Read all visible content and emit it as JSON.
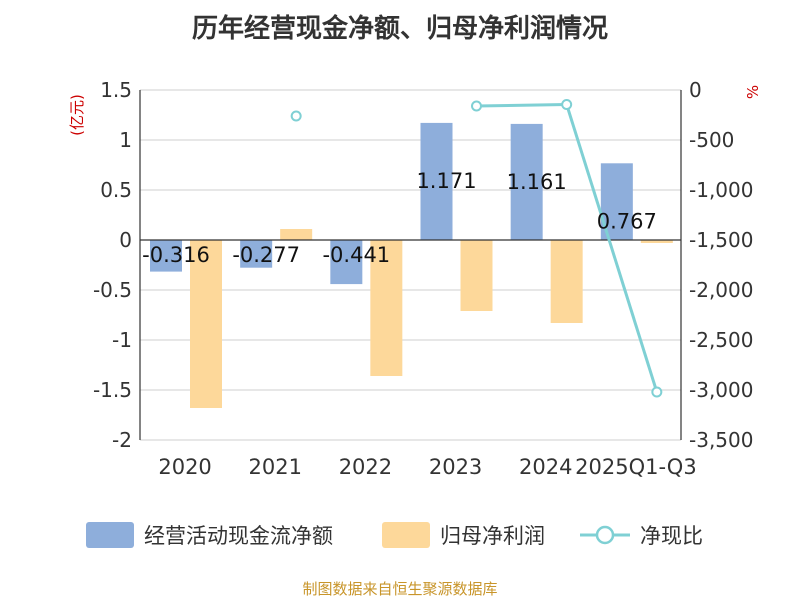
{
  "chart_data": {
    "type": "bar",
    "title": "历年经营现金净额、归母净利润情况",
    "categories": [
      "2020",
      "2021",
      "2022",
      "2023",
      "2024",
      "2025Q1-Q3"
    ],
    "y_left": {
      "unit_label": "(亿元)",
      "ylim": [
        -2,
        1.5
      ],
      "ticks": [
        1.5,
        1,
        0.5,
        0,
        -0.5,
        -1,
        -1.5,
        -2
      ],
      "tick_labels": [
        "1.5",
        "1",
        "0.5",
        "0",
        "-0.5",
        "-1",
        "-1.5",
        "-2"
      ]
    },
    "y_right": {
      "unit_label": "%",
      "ylim": [
        -3500,
        0
      ],
      "ticks": [
        0,
        -500,
        -1000,
        -1500,
        -2000,
        -2500,
        -3000,
        -3500
      ],
      "tick_labels": [
        "0",
        "-500",
        "-1,000",
        "-1,500",
        "-2,000",
        "-2,500",
        "-3,000",
        "-3,500"
      ]
    },
    "series": [
      {
        "name": "经营活动现金流净额",
        "kind": "bar",
        "axis": "left",
        "color": "#8eaedb",
        "values": [
          -0.316,
          -0.277,
          -0.441,
          1.171,
          1.161,
          0.767
        ],
        "labels": [
          "-0.316",
          "-0.277",
          "-0.441",
          "1.171",
          "1.161",
          "0.767"
        ]
      },
      {
        "name": "归母净利润",
        "kind": "bar",
        "axis": "left",
        "color": "#fdd89a",
        "values": [
          -1.68,
          0.11,
          -1.36,
          -0.71,
          -0.83,
          -0.03
        ]
      },
      {
        "name": "净现比",
        "kind": "line",
        "axis": "right",
        "color": "#7fd0d4",
        "values": [
          null,
          -260,
          null,
          -160,
          -145,
          -3020
        ]
      }
    ],
    "grid": true,
    "legend_position": "bottom"
  },
  "footer": {
    "source": "制图数据来自恒生聚源数据库"
  }
}
